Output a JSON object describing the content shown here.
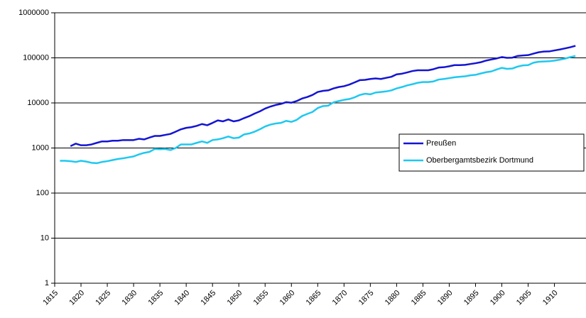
{
  "chart_data": {
    "type": "line",
    "log_y": true,
    "grid": true,
    "legend": "right",
    "x": [
      1816,
      1817,
      1818,
      1819,
      1820,
      1821,
      1822,
      1823,
      1824,
      1825,
      1826,
      1827,
      1828,
      1829,
      1830,
      1831,
      1832,
      1833,
      1834,
      1835,
      1836,
      1837,
      1838,
      1839,
      1840,
      1841,
      1842,
      1843,
      1844,
      1845,
      1846,
      1847,
      1848,
      1849,
      1850,
      1851,
      1852,
      1853,
      1854,
      1855,
      1856,
      1857,
      1858,
      1859,
      1860,
      1861,
      1862,
      1863,
      1864,
      1865,
      1866,
      1867,
      1868,
      1869,
      1870,
      1871,
      1872,
      1873,
      1874,
      1875,
      1876,
      1877,
      1878,
      1879,
      1880,
      1881,
      1882,
      1883,
      1884,
      1885,
      1886,
      1887,
      1888,
      1889,
      1890,
      1891,
      1892,
      1893,
      1894,
      1895,
      1896,
      1897,
      1898,
      1899,
      1900,
      1901,
      1902,
      1903,
      1904,
      1905,
      1906,
      1907,
      1908,
      1909,
      1910,
      1911,
      1912,
      1913,
      1914
    ],
    "series": [
      {
        "name": "Preußen",
        "color": "#1414d2",
        "values": [
          null,
          null,
          1100,
          1250,
          1150,
          1150,
          1200,
          1300,
          1400,
          1400,
          1450,
          1450,
          1500,
          1500,
          1500,
          1600,
          1550,
          1700,
          1850,
          1850,
          1950,
          2050,
          2300,
          2600,
          2800,
          2900,
          3100,
          3400,
          3200,
          3600,
          4100,
          3900,
          4300,
          3900,
          4100,
          4600,
          5100,
          5800,
          6500,
          7500,
          8300,
          9000,
          9500,
          10400,
          10100,
          11000,
          12500,
          13500,
          15000,
          17500,
          18500,
          19000,
          21000,
          22500,
          23500,
          25500,
          28500,
          32000,
          32500,
          34000,
          35000,
          34000,
          36000,
          38000,
          43000,
          44500,
          47500,
          51000,
          53000,
          53000,
          53000,
          56000,
          61000,
          62000,
          65000,
          69000,
          69000,
          70000,
          73000,
          76000,
          80000,
          87000,
          92000,
          97000,
          104000,
          100000,
          101000,
          110000,
          113000,
          115000,
          124000,
          133000,
          138000,
          139000,
          146000,
          153000,
          162000,
          172000,
          185000
        ]
      },
      {
        "name": "Oberbergamtsbezirk Dortmund",
        "color": "#1ec8f0",
        "values": [
          520,
          520,
          510,
          490,
          520,
          500,
          470,
          460,
          490,
          510,
          540,
          570,
          590,
          620,
          650,
          720,
          780,
          820,
          950,
          940,
          950,
          900,
          1000,
          1200,
          1200,
          1200,
          1300,
          1400,
          1300,
          1500,
          1550,
          1650,
          1800,
          1650,
          1700,
          2000,
          2100,
          2300,
          2600,
          3000,
          3300,
          3500,
          3600,
          4000,
          3800,
          4200,
          5100,
          5700,
          6300,
          7700,
          8500,
          8700,
          10300,
          11000,
          11700,
          12200,
          13300,
          15000,
          16000,
          15500,
          17000,
          17500,
          18000,
          19000,
          21000,
          22500,
          24500,
          26000,
          28000,
          29000,
          29000,
          30000,
          33000,
          34000,
          35500,
          37000,
          38000,
          39000,
          41000,
          42000,
          45000,
          48000,
          50000,
          55000,
          60000,
          57000,
          58000,
          64000,
          68000,
          69000,
          78000,
          82000,
          83000,
          84000,
          87000,
          91000,
          96000,
          104000,
          110000
        ]
      }
    ],
    "xlim": [
      1815,
      1916
    ],
    "xticks": [
      1815,
      1820,
      1825,
      1830,
      1835,
      1840,
      1845,
      1850,
      1855,
      1860,
      1865,
      1870,
      1875,
      1880,
      1885,
      1890,
      1895,
      1900,
      1905,
      1910
    ],
    "ylim": [
      1,
      1000000
    ],
    "yticks": [
      1,
      10,
      100,
      1000,
      10000,
      100000,
      1000000
    ]
  }
}
